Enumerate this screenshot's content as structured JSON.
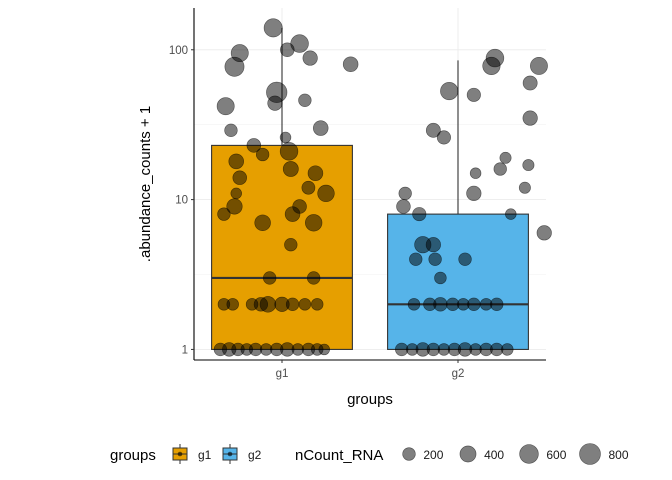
{
  "chart_data": {
    "type": "boxplot",
    "title": "",
    "xlabel": "groups",
    "ylabel": ".abundance_counts + 1",
    "y_scale": "log10",
    "ylim": [
      0.85,
      190
    ],
    "y_ticks": [
      1,
      10,
      100
    ],
    "y_tick_labels": [
      "1",
      "10",
      "100"
    ],
    "categories": [
      "g1",
      "g2"
    ],
    "boxes": [
      {
        "group": "g1",
        "color": "#E69F00",
        "lower_whisker": 1,
        "q1": 1,
        "median": 3,
        "q3": 23,
        "upper_whisker": 140
      },
      {
        "group": "g2",
        "color": "#56B4E9",
        "lower_whisker": 1,
        "q1": 1,
        "median": 2,
        "q3": 8,
        "upper_whisker": 85
      }
    ],
    "points": [
      {
        "group": "g1",
        "jitter": -0.05,
        "y": 140,
        "ncount": 560
      },
      {
        "group": "g1",
        "jitter": -0.24,
        "y": 95,
        "ncount": 480
      },
      {
        "group": "g1",
        "jitter": 0.1,
        "y": 110,
        "ncount": 520
      },
      {
        "group": "g1",
        "jitter": 0.03,
        "y": 100,
        "ncount": 260
      },
      {
        "group": "g1",
        "jitter": -0.27,
        "y": 77,
        "ncount": 640
      },
      {
        "group": "g1",
        "jitter": 0.16,
        "y": 88,
        "ncount": 300
      },
      {
        "group": "g1",
        "jitter": 0.39,
        "y": 80,
        "ncount": 320
      },
      {
        "group": "g1",
        "jitter": -0.03,
        "y": 52,
        "ncount": 760
      },
      {
        "group": "g1",
        "jitter": -0.32,
        "y": 42,
        "ncount": 480
      },
      {
        "group": "g1",
        "jitter": -0.04,
        "y": 44,
        "ncount": 300
      },
      {
        "group": "g1",
        "jitter": 0.13,
        "y": 46,
        "ncount": 200
      },
      {
        "group": "g1",
        "jitter": 0.22,
        "y": 30,
        "ncount": 320
      },
      {
        "group": "g1",
        "jitter": -0.29,
        "y": 29,
        "ncount": 200
      },
      {
        "group": "g1",
        "jitter": 0.02,
        "y": 26,
        "ncount": 120
      },
      {
        "group": "g1",
        "jitter": -0.16,
        "y": 23,
        "ncount": 260
      },
      {
        "group": "g1",
        "jitter": 0.04,
        "y": 21,
        "ncount": 520
      },
      {
        "group": "g1",
        "jitter": -0.11,
        "y": 20,
        "ncount": 200
      },
      {
        "group": "g1",
        "jitter": -0.26,
        "y": 18,
        "ncount": 320
      },
      {
        "group": "g1",
        "jitter": 0.05,
        "y": 16,
        "ncount": 340
      },
      {
        "group": "g1",
        "jitter": 0.19,
        "y": 15,
        "ncount": 320
      },
      {
        "group": "g1",
        "jitter": -0.24,
        "y": 14,
        "ncount": 260
      },
      {
        "group": "g1",
        "jitter": 0.15,
        "y": 12,
        "ncount": 220
      },
      {
        "group": "g1",
        "jitter": 0.25,
        "y": 11,
        "ncount": 440
      },
      {
        "group": "g1",
        "jitter": -0.26,
        "y": 11,
        "ncount": 120
      },
      {
        "group": "g1",
        "jitter": -0.27,
        "y": 9,
        "ncount": 360
      },
      {
        "group": "g1",
        "jitter": 0.1,
        "y": 9,
        "ncount": 260
      },
      {
        "group": "g1",
        "jitter": -0.33,
        "y": 8,
        "ncount": 200
      },
      {
        "group": "g1",
        "jitter": 0.06,
        "y": 8,
        "ncount": 320
      },
      {
        "group": "g1",
        "jitter": -0.11,
        "y": 7,
        "ncount": 380
      },
      {
        "group": "g1",
        "jitter": 0.18,
        "y": 7,
        "ncount": 440
      },
      {
        "group": "g1",
        "jitter": 0.05,
        "y": 5,
        "ncount": 200
      },
      {
        "group": "g1",
        "jitter": 0.18,
        "y": 3,
        "ncount": 200
      },
      {
        "group": "g1",
        "jitter": -0.07,
        "y": 3,
        "ncount": 200
      },
      {
        "group": "g1",
        "jitter": -0.33,
        "y": 2,
        "ncount": 160
      },
      {
        "group": "g1",
        "jitter": -0.28,
        "y": 2,
        "ncount": 160
      },
      {
        "group": "g1",
        "jitter": -0.17,
        "y": 2,
        "ncount": 160
      },
      {
        "group": "g1",
        "jitter": -0.12,
        "y": 2,
        "ncount": 250
      },
      {
        "group": "g1",
        "jitter": -0.08,
        "y": 2,
        "ncount": 380
      },
      {
        "group": "g1",
        "jitter": 0.0,
        "y": 2,
        "ncount": 300
      },
      {
        "group": "g1",
        "jitter": 0.06,
        "y": 2,
        "ncount": 200
      },
      {
        "group": "g1",
        "jitter": 0.13,
        "y": 2,
        "ncount": 160
      },
      {
        "group": "g1",
        "jitter": 0.2,
        "y": 2,
        "ncount": 160
      },
      {
        "group": "g1",
        "jitter": -0.35,
        "y": 1,
        "ncount": 200
      },
      {
        "group": "g1",
        "jitter": -0.3,
        "y": 1,
        "ncount": 250
      },
      {
        "group": "g1",
        "jitter": -0.25,
        "y": 1,
        "ncount": 200
      },
      {
        "group": "g1",
        "jitter": -0.2,
        "y": 1,
        "ncount": 160
      },
      {
        "group": "g1",
        "jitter": -0.15,
        "y": 1,
        "ncount": 200
      },
      {
        "group": "g1",
        "jitter": -0.09,
        "y": 1,
        "ncount": 160
      },
      {
        "group": "g1",
        "jitter": -0.03,
        "y": 1,
        "ncount": 200
      },
      {
        "group": "g1",
        "jitter": 0.03,
        "y": 1,
        "ncount": 250
      },
      {
        "group": "g1",
        "jitter": 0.09,
        "y": 1,
        "ncount": 160
      },
      {
        "group": "g1",
        "jitter": 0.15,
        "y": 1,
        "ncount": 200
      },
      {
        "group": "g1",
        "jitter": 0.2,
        "y": 1,
        "ncount": 160
      },
      {
        "group": "g1",
        "jitter": 0.24,
        "y": 1,
        "ncount": 120
      },
      {
        "group": "g2",
        "jitter": 0.21,
        "y": 88,
        "ncount": 520
      },
      {
        "group": "g2",
        "jitter": 0.19,
        "y": 78,
        "ncount": 500
      },
      {
        "group": "g2",
        "jitter": 0.46,
        "y": 78,
        "ncount": 480
      },
      {
        "group": "g2",
        "jitter": 0.41,
        "y": 60,
        "ncount": 280
      },
      {
        "group": "g2",
        "jitter": -0.05,
        "y": 53,
        "ncount": 500
      },
      {
        "group": "g2",
        "jitter": 0.09,
        "y": 50,
        "ncount": 240
      },
      {
        "group": "g2",
        "jitter": 0.41,
        "y": 35,
        "ncount": 300
      },
      {
        "group": "g2",
        "jitter": -0.14,
        "y": 29,
        "ncount": 280
      },
      {
        "group": "g2",
        "jitter": -0.08,
        "y": 26,
        "ncount": 240
      },
      {
        "group": "g2",
        "jitter": 0.27,
        "y": 19,
        "ncount": 140
      },
      {
        "group": "g2",
        "jitter": 0.4,
        "y": 17,
        "ncount": 140
      },
      {
        "group": "g2",
        "jitter": 0.24,
        "y": 16,
        "ncount": 200
      },
      {
        "group": "g2",
        "jitter": 0.1,
        "y": 15,
        "ncount": 120
      },
      {
        "group": "g2",
        "jitter": 0.38,
        "y": 12,
        "ncount": 140
      },
      {
        "group": "g2",
        "jitter": -0.3,
        "y": 11,
        "ncount": 200
      },
      {
        "group": "g2",
        "jitter": 0.09,
        "y": 11,
        "ncount": 300
      },
      {
        "group": "g2",
        "jitter": -0.31,
        "y": 9,
        "ncount": 260
      },
      {
        "group": "g2",
        "jitter": -0.22,
        "y": 8,
        "ncount": 240
      },
      {
        "group": "g2",
        "jitter": 0.3,
        "y": 8,
        "ncount": 120
      },
      {
        "group": "g2",
        "jitter": 0.49,
        "y": 6,
        "ncount": 300
      },
      {
        "group": "g2",
        "jitter": -0.2,
        "y": 5,
        "ncount": 420
      },
      {
        "group": "g2",
        "jitter": -0.14,
        "y": 5,
        "ncount": 300
      },
      {
        "group": "g2",
        "jitter": -0.24,
        "y": 4,
        "ncount": 200
      },
      {
        "group": "g2",
        "jitter": -0.13,
        "y": 4,
        "ncount": 200
      },
      {
        "group": "g2",
        "jitter": 0.04,
        "y": 4,
        "ncount": 200
      },
      {
        "group": "g2",
        "jitter": -0.1,
        "y": 3,
        "ncount": 160
      },
      {
        "group": "g2",
        "jitter": -0.25,
        "y": 2,
        "ncount": 160
      },
      {
        "group": "g2",
        "jitter": -0.16,
        "y": 2,
        "ncount": 200
      },
      {
        "group": "g2",
        "jitter": -0.1,
        "y": 2,
        "ncount": 250
      },
      {
        "group": "g2",
        "jitter": -0.03,
        "y": 2,
        "ncount": 200
      },
      {
        "group": "g2",
        "jitter": 0.03,
        "y": 2,
        "ncount": 160
      },
      {
        "group": "g2",
        "jitter": 0.09,
        "y": 2,
        "ncount": 200
      },
      {
        "group": "g2",
        "jitter": 0.16,
        "y": 2,
        "ncount": 160
      },
      {
        "group": "g2",
        "jitter": 0.22,
        "y": 2,
        "ncount": 200
      },
      {
        "group": "g2",
        "jitter": -0.32,
        "y": 1,
        "ncount": 200
      },
      {
        "group": "g2",
        "jitter": -0.26,
        "y": 1,
        "ncount": 160
      },
      {
        "group": "g2",
        "jitter": -0.2,
        "y": 1,
        "ncount": 250
      },
      {
        "group": "g2",
        "jitter": -0.14,
        "y": 1,
        "ncount": 200
      },
      {
        "group": "g2",
        "jitter": -0.08,
        "y": 1,
        "ncount": 160
      },
      {
        "group": "g2",
        "jitter": -0.02,
        "y": 1,
        "ncount": 200
      },
      {
        "group": "g2",
        "jitter": 0.04,
        "y": 1,
        "ncount": 250
      },
      {
        "group": "g2",
        "jitter": 0.1,
        "y": 1,
        "ncount": 160
      },
      {
        "group": "g2",
        "jitter": 0.16,
        "y": 1,
        "ncount": 200
      },
      {
        "group": "g2",
        "jitter": 0.22,
        "y": 1,
        "ncount": 200
      },
      {
        "group": "g2",
        "jitter": 0.28,
        "y": 1,
        "ncount": 160
      }
    ],
    "legend": {
      "position": "bottom",
      "groups_title": "groups",
      "groups": [
        {
          "label": "g1",
          "color": "#E69F00"
        },
        {
          "label": "g2",
          "color": "#56B4E9"
        }
      ],
      "size_title": "nCount_RNA",
      "size_breaks": [
        200,
        400,
        600,
        800
      ],
      "size_labels": [
        "200",
        "400",
        "600",
        "800"
      ]
    },
    "point_color": "#000000",
    "point_alpha": 0.5,
    "grid": true
  }
}
